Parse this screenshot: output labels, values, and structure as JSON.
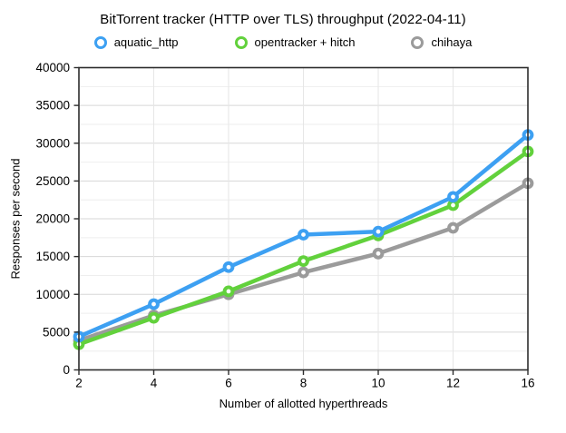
{
  "title": "BitTorrent tracker (HTTP over TLS) throughput (2022-04-11)",
  "chart_data": {
    "type": "line",
    "x_categories": [
      "2",
      "4",
      "6",
      "8",
      "10",
      "12",
      "16"
    ],
    "series": [
      {
        "name": "aquatic_http",
        "color": "#3da0f2",
        "values": [
          4400,
          8700,
          13600,
          17900,
          18300,
          22900,
          31100
        ]
      },
      {
        "name": "opentracker + hitch",
        "color": "#62d13c",
        "values": [
          3400,
          6900,
          10400,
          14400,
          17800,
          21800,
          28900
        ]
      },
      {
        "name": "chihaya",
        "color": "#9b9b9b",
        "values": [
          3900,
          7200,
          10000,
          12900,
          15400,
          18800,
          24700
        ]
      }
    ],
    "title": "BitTorrent tracker (HTTP over TLS) throughput (2022-04-11)",
    "xlabel": "Number of allotted hyperthreads",
    "ylabel": "Responses per second",
    "ylim": [
      0,
      40000
    ],
    "ytick_step": 5000,
    "yminor_step": 2500,
    "ytick_labels": [
      "0",
      "5000",
      "10000",
      "15000",
      "20000",
      "25000",
      "30000",
      "35000",
      "40000"
    ],
    "grid": "horizontal-and-vertical",
    "legend_position": "top"
  },
  "colors": {
    "border": "#2d2d2d",
    "major_grid": "#d7d7d7",
    "minor_grid": "#eeeeee",
    "vertical_grid": "#e6e6e6",
    "text": "#000000"
  }
}
